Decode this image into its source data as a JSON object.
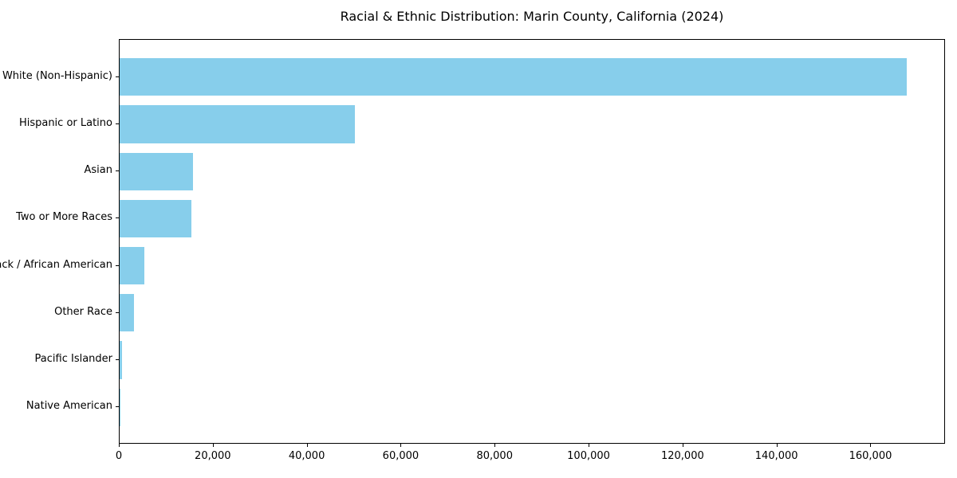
{
  "chart_data": {
    "type": "bar",
    "orientation": "horizontal",
    "title": "Racial & Ethnic Distribution: Marin County, California (2024)",
    "xlabel": "",
    "ylabel": "",
    "categories": [
      "White (Non-Hispanic)",
      "Hispanic or Latino",
      "Asian",
      "Two or More Races",
      "Black / African American",
      "Other Race",
      "Pacific Islander",
      "Native American"
    ],
    "values": [
      167500,
      50000,
      15700,
      15200,
      5300,
      3100,
      450,
      150
    ],
    "xlim": [
      0,
      175875
    ],
    "x_ticks": [
      0,
      20000,
      40000,
      60000,
      80000,
      100000,
      120000,
      140000,
      160000
    ],
    "x_tick_labels": [
      "0",
      "20,000",
      "40,000",
      "60,000",
      "80,000",
      "100,000",
      "120,000",
      "140,000",
      "160,000"
    ],
    "bar_color": "#87CEEB",
    "axis_color": "#000000",
    "background_color": "#ffffff",
    "grid": false,
    "legend": false
  }
}
